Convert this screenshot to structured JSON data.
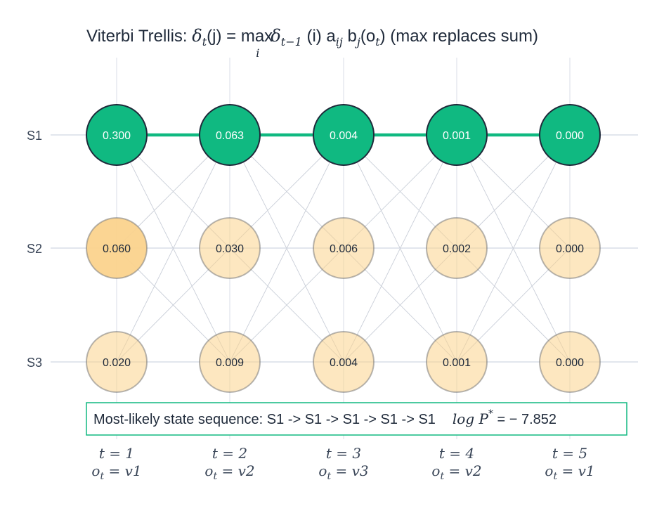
{
  "title": {
    "prefix": "Viterbi Trellis: ",
    "formula_parts": [
      "δ",
      "t",
      "(j) = max",
      "i",
      "δ",
      "t−1",
      " (i) a",
      "ij",
      " b",
      "j",
      "(o",
      "t",
      ")"
    ],
    "suffix": "  (max replaces sum)"
  },
  "states": [
    "S1",
    "S2",
    "S3"
  ],
  "time_steps": [
    {
      "t": "t = 1",
      "obs": "o",
      "obs_sub": "t",
      "obs_val": " = v1"
    },
    {
      "t": "t = 2",
      "obs": "o",
      "obs_sub": "t",
      "obs_val": " = v2"
    },
    {
      "t": "t = 3",
      "obs": "o",
      "obs_sub": "t",
      "obs_val": " = v3"
    },
    {
      "t": "t = 4",
      "obs": "o",
      "obs_sub": "t",
      "obs_val": " = v2"
    },
    {
      "t": "t = 5",
      "obs": "o",
      "obs_sub": "t",
      "obs_val": " = v1"
    }
  ],
  "delta": [
    [
      "0.300",
      "0.063",
      "0.004",
      "0.001",
      "0.000"
    ],
    [
      "0.060",
      "0.030",
      "0.006",
      "0.002",
      "0.000"
    ],
    [
      "0.020",
      "0.009",
      "0.004",
      "0.001",
      "0.000"
    ]
  ],
  "best_path_states": [
    0,
    0,
    0,
    0,
    0
  ],
  "colors": {
    "path": "#10b981",
    "path_edge": "#1f2a3a",
    "other_fill": "#fbd38d",
    "grid": "#d9dee7",
    "edge": "#c9ced8"
  },
  "summary": {
    "label": "Most-likely state sequence:  S1 -> S1 -> S1 -> S1 -> S1",
    "logp_label": "log P",
    "logp_sup": "*",
    "logp_value": " = − 7.852"
  }
}
